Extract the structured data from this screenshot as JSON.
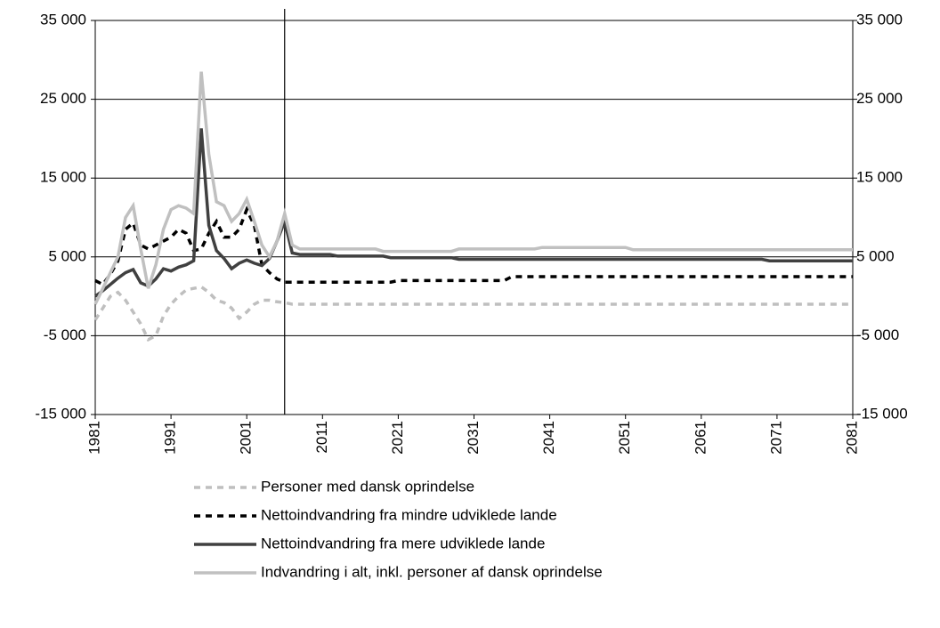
{
  "chart_data": {
    "type": "line",
    "x": [
      1981,
      1982,
      1983,
      1984,
      1985,
      1986,
      1987,
      1988,
      1989,
      1990,
      1991,
      1992,
      1993,
      1994,
      1995,
      1996,
      1997,
      1998,
      1999,
      2000,
      2001,
      2002,
      2003,
      2004,
      2005,
      2006,
      2007,
      2008,
      2009,
      2010,
      2011,
      2012,
      2013,
      2014,
      2015,
      2016,
      2017,
      2018,
      2019,
      2020,
      2021,
      2022,
      2023,
      2024,
      2025,
      2026,
      2027,
      2028,
      2029,
      2030,
      2031,
      2032,
      2033,
      2034,
      2035,
      2036,
      2037,
      2038,
      2039,
      2040,
      2041,
      2042,
      2043,
      2044,
      2045,
      2046,
      2047,
      2048,
      2049,
      2050,
      2051,
      2052,
      2053,
      2054,
      2055,
      2056,
      2057,
      2058,
      2059,
      2060,
      2061,
      2062,
      2063,
      2064,
      2065,
      2066,
      2067,
      2068,
      2069,
      2070,
      2071,
      2072,
      2073,
      2074,
      2075,
      2076,
      2077,
      2078,
      2079,
      2080,
      2081
    ],
    "xlim": [
      1981,
      2081
    ],
    "xticks": [
      1981,
      1991,
      2001,
      2011,
      2021,
      2031,
      2041,
      2051,
      2061,
      2071,
      2081
    ],
    "ylim": [
      -15000,
      35000
    ],
    "yticks": [
      {
        "value": -15000,
        "label": "-15 000"
      },
      {
        "value": -5000,
        "label": "-5 000"
      },
      {
        "value": 5000,
        "label": "5 000"
      },
      {
        "value": 15000,
        "label": "15 000"
      },
      {
        "value": 25000,
        "label": "25 000"
      },
      {
        "value": 35000,
        "label": "35 000"
      }
    ],
    "y2lim": [
      -15000,
      35000
    ],
    "y2ticks": [
      {
        "value": -15000,
        "label": "-15 000"
      },
      {
        "value": -5000,
        "label": "-5 000"
      },
      {
        "value": 5000,
        "label": "5 000"
      },
      {
        "value": 15000,
        "label": "15 000"
      },
      {
        "value": 25000,
        "label": "25 000"
      },
      {
        "value": 35000,
        "label": "35 000"
      }
    ],
    "grid": true,
    "vline": 2006,
    "legend": "bottom",
    "series": [
      {
        "name": "Personer med dansk oprindelse",
        "color": "#bfbfbf",
        "style": "dashed",
        "values": [
          -3000,
          -1500,
          0,
          500,
          -500,
          -2000,
          -3500,
          -5500,
          -5000,
          -2500,
          -1000,
          0,
          800,
          1000,
          1200,
          500,
          -500,
          -800,
          -1500,
          -2800,
          -2000,
          -1000,
          -500,
          -500,
          -700,
          -800,
          -1000,
          -1000,
          -1000,
          -1000,
          -1000,
          -1000,
          -1000,
          -1000,
          -1000,
          -1000,
          -1000,
          -1000,
          -1000,
          -1000,
          -1000,
          -1000,
          -1000,
          -1000,
          -1000,
          -1000,
          -1000,
          -1000,
          -1000,
          -1000,
          -1000,
          -1000,
          -1000,
          -1000,
          -1000,
          -1000,
          -1000,
          -1000,
          -1000,
          -1000,
          -1000,
          -1000,
          -1000,
          -1000,
          -1000,
          -1000,
          -1000,
          -1000,
          -1000,
          -1000,
          -1000,
          -1000,
          -1000,
          -1000,
          -1000,
          -1000,
          -1000,
          -1000,
          -1000,
          -1000,
          -1000,
          -1000,
          -1000,
          -1000,
          -1000,
          -1000,
          -1000,
          -1000,
          -1000,
          -1000,
          -1000,
          -1000,
          -1000,
          -1000,
          -1000,
          -1000,
          -1000,
          -1000,
          -1000,
          -1000,
          -1000
        ]
      },
      {
        "name": "Nettoindvandring fra mindre udviklede lande",
        "color": "#000000",
        "style": "dashed",
        "values": [
          2000,
          1500,
          2800,
          4500,
          8500,
          9300,
          6500,
          6000,
          6500,
          7000,
          7500,
          8500,
          8000,
          5800,
          6000,
          8000,
          9500,
          7500,
          7500,
          8500,
          11000,
          9000,
          4000,
          3000,
          2200,
          1800,
          1800,
          1800,
          1800,
          1800,
          1800,
          1800,
          1800,
          1800,
          1800,
          1800,
          1800,
          1800,
          1800,
          1800,
          2000,
          2000,
          2000,
          2000,
          2000,
          2000,
          2000,
          2000,
          2000,
          2000,
          2000,
          2000,
          2000,
          2000,
          2000,
          2500,
          2500,
          2500,
          2500,
          2500,
          2500,
          2500,
          2500,
          2500,
          2500,
          2500,
          2500,
          2500,
          2500,
          2500,
          2500,
          2500,
          2500,
          2500,
          2500,
          2500,
          2500,
          2500,
          2500,
          2500,
          2500,
          2500,
          2500,
          2500,
          2500,
          2500,
          2500,
          2500,
          2500,
          2500,
          2500,
          2500,
          2500,
          2500,
          2500,
          2500,
          2500,
          2500,
          2500,
          2500,
          2500
        ]
      },
      {
        "name": "Nettoindvandring fra mere udviklede lande",
        "color": "#404040",
        "style": "solid",
        "values": [
          0,
          700,
          1500,
          2300,
          3000,
          3400,
          1700,
          1300,
          2200,
          3500,
          3200,
          3700,
          4000,
          4500,
          21300,
          9000,
          5800,
          4800,
          3500,
          4200,
          4600,
          4200,
          3900,
          4800,
          7000,
          9500,
          5500,
          5300,
          5300,
          5300,
          5300,
          5300,
          5100,
          5100,
          5100,
          5100,
          5100,
          5100,
          5100,
          4900,
          4900,
          4900,
          4900,
          4900,
          4900,
          4900,
          4900,
          4900,
          4700,
          4700,
          4700,
          4700,
          4700,
          4700,
          4700,
          4700,
          4700,
          4700,
          4700,
          4700,
          4700,
          4700,
          4700,
          4700,
          4700,
          4700,
          4700,
          4700,
          4700,
          4700,
          4700,
          4700,
          4700,
          4700,
          4700,
          4700,
          4700,
          4700,
          4700,
          4700,
          4700,
          4700,
          4700,
          4700,
          4700,
          4700,
          4700,
          4700,
          4700,
          4500,
          4500,
          4500,
          4500,
          4500,
          4500,
          4500,
          4500,
          4500,
          4500,
          4500,
          4500
        ]
      },
      {
        "name": "Indvandring i alt, inkl. personer af dansk oprindelse",
        "color": "#c0c0c0",
        "style": "solid",
        "values": [
          -1000,
          1000,
          3000,
          5000,
          10000,
          11500,
          6000,
          1000,
          4000,
          8500,
          11000,
          11500,
          11200,
          10500,
          28500,
          18000,
          12000,
          11500,
          9500,
          10500,
          12300,
          9500,
          6500,
          5000,
          7000,
          10500,
          6500,
          6000,
          6000,
          6000,
          6000,
          6000,
          6000,
          6000,
          6000,
          6000,
          6000,
          6000,
          5700,
          5700,
          5700,
          5700,
          5700,
          5700,
          5700,
          5700,
          5700,
          5700,
          6000,
          6000,
          6000,
          6000,
          6000,
          6000,
          6000,
          6000,
          6000,
          6000,
          6000,
          6200,
          6200,
          6200,
          6200,
          6200,
          6200,
          6200,
          6200,
          6200,
          6200,
          6200,
          6200,
          5900,
          5900,
          5900,
          5900,
          5900,
          5900,
          5900,
          5900,
          5900,
          5900,
          5900,
          5900,
          5900,
          5900,
          5900,
          5900,
          5900,
          5900,
          5900,
          5900,
          5900,
          5900,
          5900,
          5900,
          5900,
          5900,
          5900,
          5900,
          5900,
          5900
        ]
      }
    ]
  }
}
